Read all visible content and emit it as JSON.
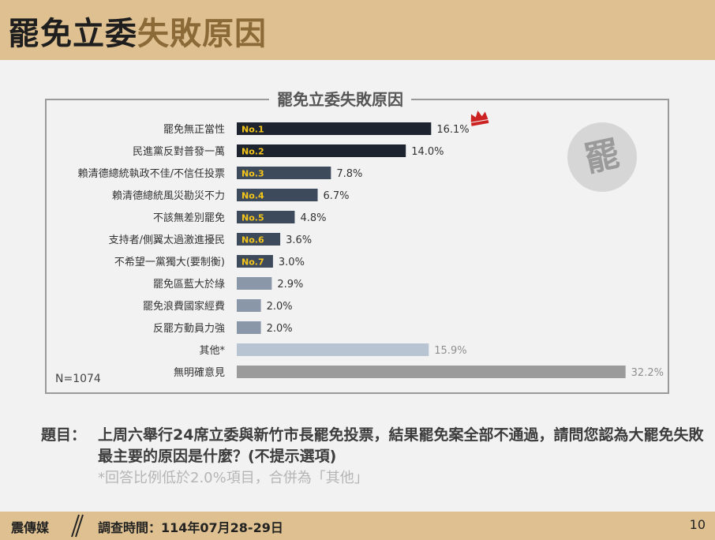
{
  "header": {
    "title_part1": "罷免立委",
    "title_part2": "失敗原因"
  },
  "chart_data": {
    "type": "bar",
    "orientation": "horizontal",
    "title": "罷免立委失敗原因",
    "categories": [
      "罷免無正當性",
      "民進黨反對普發一萬",
      "賴清德總統執政不佳/不信任投票",
      "賴清德總統風災勘災不力",
      "不該無差別罷免",
      "支持者/側翼太過激進擾民",
      "不希望一黨獨大(要制衡)",
      "罷免區藍大於綠",
      "罷免浪費國家經費",
      "反罷方動員力強",
      "其他*",
      "無明確意見"
    ],
    "values": [
      16.1,
      14.0,
      7.8,
      6.7,
      4.8,
      3.6,
      3.0,
      2.9,
      2.0,
      2.0,
      15.9,
      32.2
    ],
    "value_labels": [
      "16.1%",
      "14.0%",
      "7.8%",
      "6.7%",
      "4.8%",
      "3.6%",
      "3.0%",
      "2.9%",
      "2.0%",
      "2.0%",
      "15.9%",
      "32.2%"
    ],
    "rank_labels": [
      "No.1",
      "No.2",
      "No.3",
      "No.4",
      "No.5",
      "No.6",
      "No.7"
    ],
    "unit": "%",
    "xlim": [
      0,
      35
    ],
    "grid": false,
    "colors": {
      "rank_top": "#1d2430",
      "rank_mid": "#3d4a5c",
      "others": "#8a97a9",
      "other_bar": "#b9c4d2",
      "no_opinion": "#9b9b9b",
      "rank_text": "#f5c518",
      "crown": "#cc2222"
    }
  },
  "sample_note": "N=1074",
  "logo_glyph": "罷",
  "question": {
    "label": "題目：",
    "text": "上周六舉行24席立委與新竹市長罷免投票，結果罷免案全部不通過，請問您認為大罷免失敗最主要的原因是什麼？(不提示選項)"
  },
  "note": "*回答比例低於2.0%項目，合併為「其他」",
  "footer": {
    "brand": "震傳媒",
    "survey_date": "調查時間：114年07月28-29日",
    "page": "10"
  }
}
